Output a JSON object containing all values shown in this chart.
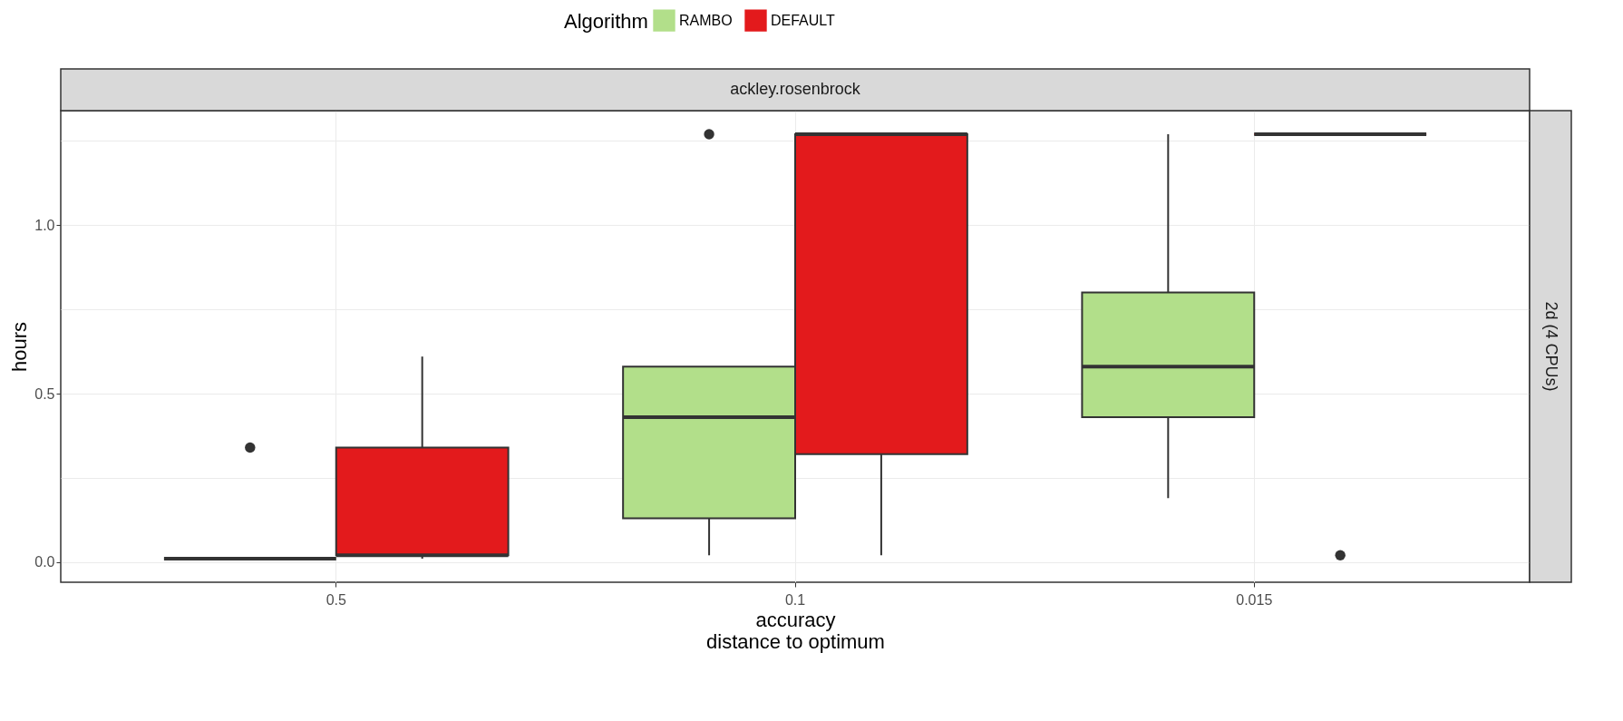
{
  "chart_data": {
    "type": "box",
    "xlabel": "accuracy\ndistance to optimum",
    "ylabel": "hours",
    "legend_title": "Algorithm",
    "legend": "top",
    "grid": true,
    "categories": [
      "0.5",
      "0.1",
      "0.015"
    ],
    "ylim": [
      -0.06,
      1.34
    ],
    "yticks": [
      {
        "value": 0,
        "label": "0.0"
      },
      {
        "value": 0.25,
        "label": null
      },
      {
        "value": 0.5,
        "label": "0.5"
      },
      {
        "value": 0.75,
        "label": null
      },
      {
        "value": 1,
        "label": "1.0"
      },
      {
        "value": 1.25,
        "label": null
      }
    ],
    "annotations": [
      "ackley.rosenbrock",
      "2d (4 CPUs)"
    ],
    "series": [
      {
        "name": "RAMBO",
        "color": "#b2df8a",
        "boxes": [
          {
            "low": 0.01,
            "q1": 0.01,
            "median": 0.01,
            "q3": 0.01,
            "high": 0.01,
            "outliers": [
              0.34
            ]
          },
          {
            "low": 0.02,
            "q1": 0.13,
            "median": 0.43,
            "q3": 0.58,
            "high": 0.58,
            "outliers": [
              1.27
            ]
          },
          {
            "low": 0.19,
            "q1": 0.43,
            "median": 0.58,
            "q3": 0.8,
            "high": 1.27
          }
        ]
      },
      {
        "name": "DEFAULT",
        "color": "#e31a1c",
        "boxes": [
          {
            "low": 0.01,
            "q1": 0.02,
            "median": 0.02,
            "q3": 0.34,
            "high": 0.61
          },
          {
            "low": 0.02,
            "q1": 0.32,
            "median": 1.27,
            "q3": 1.27,
            "high": 1.27
          },
          {
            "low": 1.27,
            "q1": 1.27,
            "median": 1.27,
            "q3": 1.27,
            "high": 1.27,
            "outliers": [
              0.02
            ]
          }
        ]
      }
    ]
  }
}
